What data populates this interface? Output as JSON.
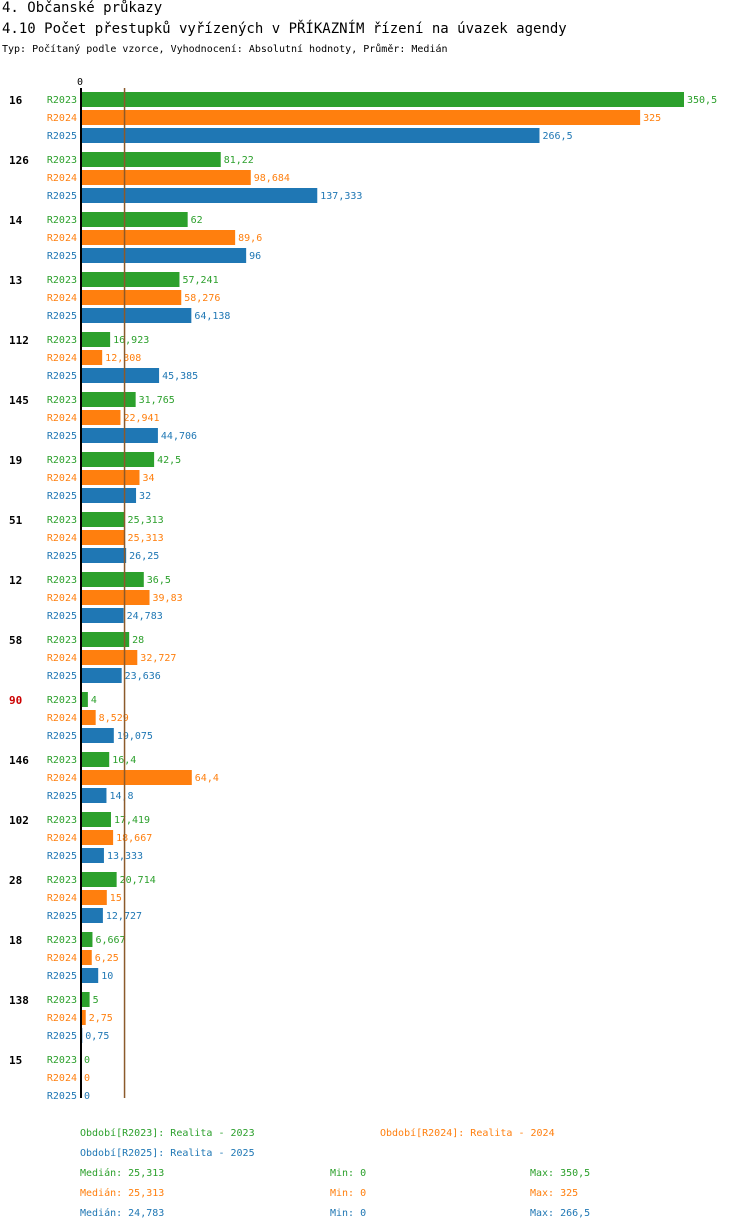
{
  "header": {
    "section": "4. Občanské průkazy",
    "title": "4.10 Počet přestupků vyřízených v PŘÍKAZNÍM řízení na úvazek agendy",
    "subtitle": "Typ: Počítaný podle vzorce, Vyhodnocení: Absolutní hodnoty, Průměr: Medián"
  },
  "colors": {
    "R2023": "#2ca02c",
    "R2024": "#ff7f0e",
    "R2025": "#1f77b4",
    "highlight": "#cc0000",
    "median_line": "#8b5a2b",
    "axis": "#000000"
  },
  "chart_data": {
    "type": "bar",
    "orientation": "horizontal",
    "x_axis_zero_label": "0",
    "xlim": [
      0,
      350.5
    ],
    "median_reference": 25.313,
    "series_names": [
      "R2023",
      "R2024",
      "R2025"
    ],
    "groups": [
      {
        "label": "16",
        "highlight": false,
        "values": [
          350.5,
          325,
          266.5
        ],
        "labels": [
          "350,5",
          "325",
          "266,5"
        ]
      },
      {
        "label": "126",
        "highlight": false,
        "values": [
          81.22,
          98.684,
          137.333
        ],
        "labels": [
          "81,22",
          "98,684",
          "137,333"
        ]
      },
      {
        "label": "14",
        "highlight": false,
        "values": [
          62,
          89.6,
          96
        ],
        "labels": [
          "62",
          "89,6",
          "96"
        ]
      },
      {
        "label": "13",
        "highlight": false,
        "values": [
          57.241,
          58.276,
          64.138
        ],
        "labels": [
          "57,241",
          "58,276",
          "64,138"
        ]
      },
      {
        "label": "112",
        "highlight": false,
        "values": [
          16.923,
          12.308,
          45.385
        ],
        "labels": [
          "16,923",
          "12,308",
          "45,385"
        ]
      },
      {
        "label": "145",
        "highlight": false,
        "values": [
          31.765,
          22.941,
          44.706
        ],
        "labels": [
          "31,765",
          "22,941",
          "44,706"
        ]
      },
      {
        "label": "19",
        "highlight": false,
        "values": [
          42.5,
          34,
          32
        ],
        "labels": [
          "42,5",
          "34",
          "32"
        ]
      },
      {
        "label": "51",
        "highlight": false,
        "values": [
          25.313,
          25.313,
          26.25
        ],
        "labels": [
          "25,313",
          "25,313",
          "26,25"
        ]
      },
      {
        "label": "12",
        "highlight": false,
        "values": [
          36.5,
          39.83,
          24.783
        ],
        "labels": [
          "36,5",
          "39,83",
          "24,783"
        ]
      },
      {
        "label": "58",
        "highlight": false,
        "values": [
          28,
          32.727,
          23.636
        ],
        "labels": [
          "28",
          "32,727",
          "23,636"
        ]
      },
      {
        "label": "90",
        "highlight": true,
        "values": [
          4,
          8.529,
          19.075
        ],
        "labels": [
          "4",
          "8,529",
          "19,075"
        ]
      },
      {
        "label": "146",
        "highlight": false,
        "values": [
          16.4,
          64.4,
          14.8
        ],
        "labels": [
          "16,4",
          "64,4",
          "14,8"
        ]
      },
      {
        "label": "102",
        "highlight": false,
        "values": [
          17.419,
          18.667,
          13.333
        ],
        "labels": [
          "17,419",
          "18,667",
          "13,333"
        ]
      },
      {
        "label": "28",
        "highlight": false,
        "values": [
          20.714,
          15,
          12.727
        ],
        "labels": [
          "20,714",
          "15",
          "12,727"
        ]
      },
      {
        "label": "18",
        "highlight": false,
        "values": [
          6.667,
          6.25,
          10
        ],
        "labels": [
          "6,667",
          "6,25",
          "10"
        ]
      },
      {
        "label": "138",
        "highlight": false,
        "values": [
          5,
          2.75,
          0.75
        ],
        "labels": [
          "5",
          "2,75",
          "0,75"
        ]
      },
      {
        "label": "15",
        "highlight": false,
        "values": [
          0,
          0,
          0
        ],
        "labels": [
          "0",
          "0",
          "0"
        ]
      }
    ]
  },
  "legend": {
    "period_r2023": "Období[R2023]: Realita - 2023",
    "period_r2024": "Období[R2024]: Realita - 2024",
    "period_r2025": "Období[R2025]: Realita - 2025",
    "stats": [
      {
        "median": "Medián: 25,313",
        "min": "Min: 0",
        "max": "Max: 350,5"
      },
      {
        "median": "Medián: 25,313",
        "min": "Min: 0",
        "max": "Max: 325"
      },
      {
        "median": "Medián: 24,783",
        "min": "Min: 0",
        "max": "Max: 266,5"
      }
    ]
  }
}
